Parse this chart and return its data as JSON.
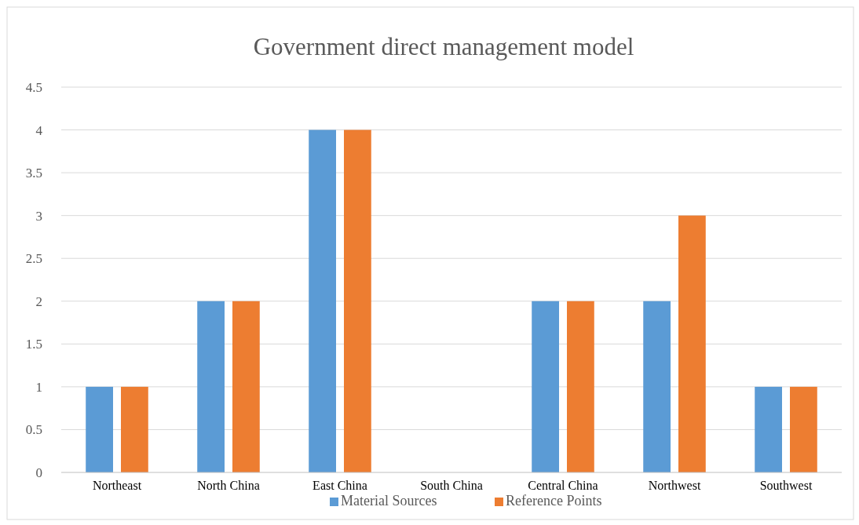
{
  "chart_data": {
    "type": "bar",
    "title": "Government direct management model",
    "categories": [
      "Northeast",
      "North China",
      "East China",
      "South China",
      "Central China",
      "Northwest",
      "Southwest"
    ],
    "series": [
      {
        "name": "Material Sources",
        "color": "#5b9bd5",
        "values": [
          1,
          2,
          4,
          0,
          2,
          2,
          1
        ]
      },
      {
        "name": "Reference Points",
        "color": "#ed7d31",
        "values": [
          1,
          2,
          4,
          0,
          2,
          3,
          1
        ]
      }
    ],
    "ylim": [
      0,
      4.5
    ],
    "yticks": [
      0,
      0.5,
      1,
      1.5,
      2,
      2.5,
      3,
      3.5,
      4,
      4.5
    ],
    "grid": "y",
    "legend": "bottom"
  }
}
